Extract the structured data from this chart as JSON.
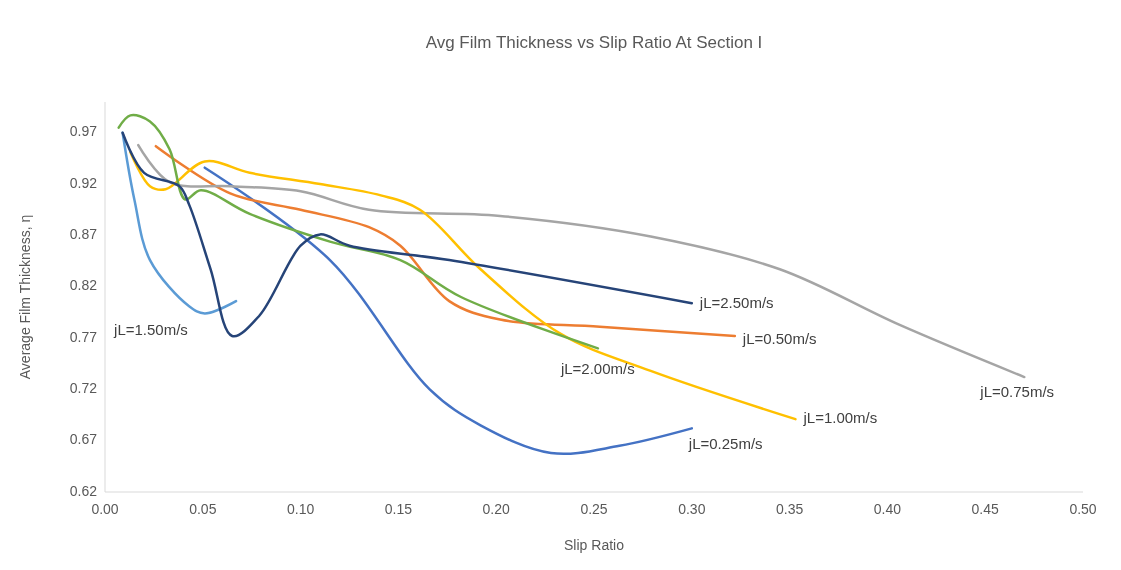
{
  "chart_data": {
    "type": "line",
    "title": "Avg Film Thickness vs Slip Ratio At Section I",
    "xlabel": "Slip Ratio",
    "ylabel": "Average Film Thickness, η",
    "xlim": [
      0,
      0.5
    ],
    "xticks": [
      {
        "value": 0,
        "label": "0.00"
      },
      {
        "value": 0.05,
        "label": "0.05"
      },
      {
        "value": 0.1,
        "label": "0.10"
      },
      {
        "value": 0.15,
        "label": "0.15"
      },
      {
        "value": 0.2,
        "label": "0.20"
      },
      {
        "value": 0.25,
        "label": "0.25"
      },
      {
        "value": 0.3,
        "label": "0.30"
      },
      {
        "value": 0.35,
        "label": "0.35"
      },
      {
        "value": 0.4,
        "label": "0.40"
      },
      {
        "value": 0.45,
        "label": "0.45"
      },
      {
        "value": 0.5,
        "label": "0.50"
      }
    ],
    "ylim": [
      0.62,
      1.0
    ],
    "yticks": [
      0.62,
      0.67,
      0.72,
      0.77,
      0.82,
      0.87,
      0.92,
      0.97
    ],
    "grid": false,
    "series": [
      {
        "name": "jL=0.25m/s",
        "color": "#4472c4",
        "x": [
          0.051,
          0.115,
          0.166,
          0.192,
          0.228,
          0.263,
          0.3
        ],
        "values": [
          0.936,
          0.846,
          0.72,
          0.685,
          0.658,
          0.665,
          0.682
        ]
      },
      {
        "name": "jL=0.50m/s",
        "color": "#ed7d31",
        "x": [
          0.026,
          0.064,
          0.1,
          0.135,
          0.151,
          0.176,
          0.202,
          0.253,
          0.322
        ],
        "values": [
          0.957,
          0.911,
          0.895,
          0.878,
          0.86,
          0.806,
          0.788,
          0.781,
          0.772
        ]
      },
      {
        "name": "jL=0.75m/s",
        "color": "#a5a5a5",
        "x": [
          0.017,
          0.033,
          0.064,
          0.1,
          0.135,
          0.202,
          0.279,
          0.345,
          0.406,
          0.47
        ],
        "values": [
          0.958,
          0.922,
          0.918,
          0.913,
          0.895,
          0.889,
          0.869,
          0.837,
          0.783,
          0.732
        ]
      },
      {
        "name": "jL=1.00m/s",
        "color": "#ffc000",
        "x": [
          0.013,
          0.023,
          0.031,
          0.051,
          0.074,
          0.11,
          0.141,
          0.161,
          0.192,
          0.233,
          0.279,
          0.353
        ],
        "values": [
          0.951,
          0.918,
          0.915,
          0.942,
          0.931,
          0.92,
          0.909,
          0.895,
          0.837,
          0.774,
          0.738,
          0.691
        ]
      },
      {
        "name": "jL=1.50m/s",
        "color": "#5b9bd5",
        "x": [
          0.009,
          0.015,
          0.023,
          0.043,
          0.051,
          0.067
        ],
        "values": [
          0.97,
          0.905,
          0.846,
          0.801,
          0.794,
          0.806
        ]
      },
      {
        "name": "jL=2.00m/s",
        "color": "#70ad47",
        "x": [
          0.007,
          0.013,
          0.023,
          0.033,
          0.041,
          0.049,
          0.074,
          0.115,
          0.151,
          0.182,
          0.252
        ],
        "values": [
          0.975,
          0.987,
          0.981,
          0.954,
          0.905,
          0.914,
          0.891,
          0.864,
          0.846,
          0.81,
          0.76
        ]
      },
      {
        "name": "jL=2.50m/s",
        "color": "#264478",
        "x": [
          0.009,
          0.02,
          0.038,
          0.043,
          0.054,
          0.065,
          0.079,
          0.1,
          0.11,
          0.125,
          0.176,
          0.3
        ],
        "values": [
          0.97,
          0.931,
          0.918,
          0.9,
          0.837,
          0.772,
          0.792,
          0.86,
          0.871,
          0.86,
          0.846,
          0.804
        ]
      }
    ]
  }
}
